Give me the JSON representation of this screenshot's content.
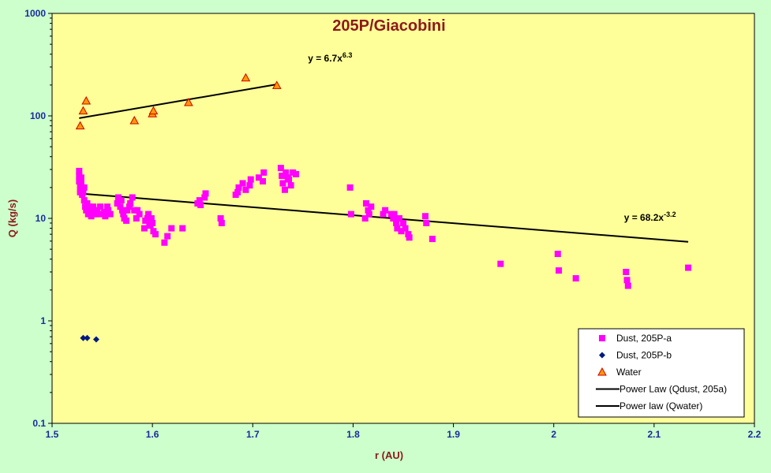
{
  "chart_data": {
    "type": "scatter",
    "title": "205P/Giacobini",
    "xlabel": "r (AU)",
    "ylabel": "Q (kg/s)",
    "xlim": [
      1.5,
      2.2
    ],
    "ylim": [
      0.1,
      1000
    ],
    "yscale": "log",
    "xticks": [
      "1.5",
      "1.6",
      "1.7",
      "1.8",
      "1.9",
      "2",
      "2.1",
      "2.2"
    ],
    "yticks": [
      "0.1",
      "1",
      "10",
      "100",
      "1000"
    ],
    "grid": false,
    "legend_position": "bottom-right",
    "colors": {
      "plot_bg": "#ffff99",
      "page_bg": "#ccffcc",
      "dust_a": "#ff00ff",
      "dust_b": "#001a80",
      "water_fill": "#ff9900",
      "water_edge": "#cc0000",
      "trend": "#000000"
    },
    "series": [
      {
        "name": "Dust, 205P-a",
        "marker": "square",
        "x": [
          1.527,
          1.527,
          1.527,
          1.528,
          1.528,
          1.528,
          1.529,
          1.529,
          1.53,
          1.53,
          1.531,
          1.532,
          1.532,
          1.533,
          1.534,
          1.535,
          1.536,
          1.537,
          1.538,
          1.539,
          1.54,
          1.541,
          1.542,
          1.543,
          1.545,
          1.547,
          1.548,
          1.552,
          1.553,
          1.555,
          1.556,
          1.558,
          1.565,
          1.566,
          1.568,
          1.569,
          1.57,
          1.571,
          1.572,
          1.574,
          1.575,
          1.577,
          1.578,
          1.58,
          1.582,
          1.584,
          1.585,
          1.587,
          1.592,
          1.593,
          1.595,
          1.596,
          1.597,
          1.598,
          1.599,
          1.6,
          1.601,
          1.603,
          1.612,
          1.615,
          1.619,
          1.63,
          1.645,
          1.647,
          1.648,
          1.652,
          1.653,
          1.668,
          1.669,
          1.683,
          1.685,
          1.686,
          1.69,
          1.693,
          1.697,
          1.698,
          1.706,
          1.71,
          1.711,
          1.728,
          1.729,
          1.73,
          1.732,
          1.733,
          1.735,
          1.736,
          1.738,
          1.74,
          1.743,
          1.797,
          1.798,
          1.812,
          1.813,
          1.815,
          1.816,
          1.818,
          1.83,
          1.832,
          1.838,
          1.84,
          1.841,
          1.843,
          1.844,
          1.846,
          1.848,
          1.85,
          1.852,
          1.855,
          1.856,
          1.872,
          1.873,
          1.879,
          1.947,
          2.004,
          2.005,
          2.022,
          2.072,
          2.073,
          2.074,
          2.134
        ],
        "y": [
          29,
          26,
          23,
          21,
          19,
          18,
          25,
          22,
          20,
          17,
          18,
          20,
          15,
          13,
          12,
          14,
          11,
          13,
          12,
          10.5,
          11,
          13,
          12,
          11,
          12,
          11,
          13,
          11.5,
          10.5,
          13,
          12,
          11,
          14,
          16,
          13,
          15,
          12,
          11,
          10,
          9.5,
          12,
          13,
          14,
          16,
          12,
          10,
          12,
          11,
          8,
          9.5,
          10,
          11,
          9,
          8.5,
          10,
          9,
          7.5,
          7,
          5.8,
          6.7,
          8,
          8,
          14,
          15,
          13.5,
          16,
          17.5,
          10,
          9,
          17,
          18,
          20,
          22,
          19,
          21,
          24,
          25,
          23,
          28,
          31,
          26,
          22,
          19,
          28,
          25,
          24,
          21,
          28,
          27,
          20,
          11,
          10,
          14,
          12,
          11,
          13,
          11,
          12,
          11,
          10,
          11,
          9,
          8,
          10,
          7.5,
          9,
          8,
          7,
          6.5,
          10.5,
          9,
          6.3,
          3.6,
          4.5,
          3.1,
          2.6,
          3,
          2.5,
          2.2,
          3.3
        ]
      },
      {
        "name": "Dust, 205P-b",
        "marker": "diamond",
        "x": [
          1.531,
          1.535,
          1.544
        ],
        "y": [
          0.68,
          0.68,
          0.66
        ]
      },
      {
        "name": "Water",
        "marker": "triangle",
        "x": [
          1.528,
          1.531,
          1.534,
          1.582,
          1.6,
          1.601,
          1.636,
          1.693,
          1.724
        ],
        "y": [
          80,
          112,
          140,
          90,
          105,
          112,
          135,
          235,
          198
        ]
      }
    ],
    "trendlines": [
      {
        "name": "Power Law (Qdust, 205a)",
        "x_range": [
          1.527,
          2.134
        ],
        "y_range": [
          17.5,
          5.9
        ],
        "label": "y = 68.2x",
        "label_exp": "-3.2",
        "label_at": [
          2.07,
          9.5
        ]
      },
      {
        "name": "Power law (Qwater)",
        "x_range": [
          1.527,
          1.724
        ],
        "y_range": [
          95,
          203
        ],
        "label": "y = 6.7x",
        "label_exp": "6.3",
        "label_at": [
          1.755,
          340
        ]
      }
    ]
  }
}
